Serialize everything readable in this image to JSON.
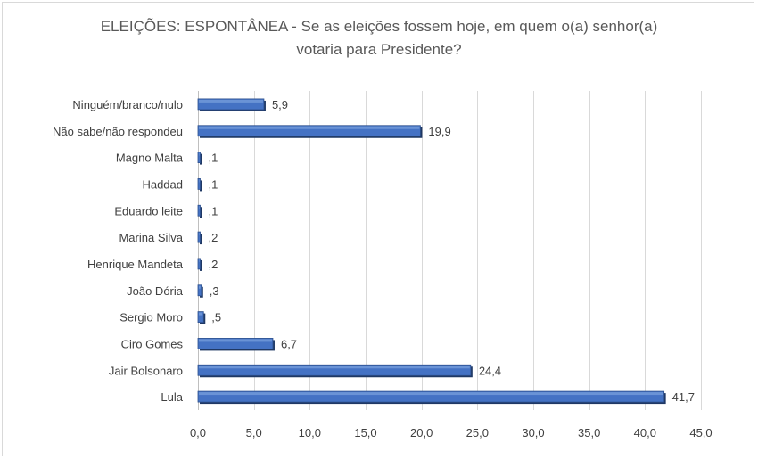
{
  "chart_data": {
    "type": "bar",
    "orientation": "horizontal",
    "title_line1": "ELEIÇÕES: ESPONTÂNEA - Se as eleições fossem hoje, em quem o(a) senhor(a)",
    "title_line2": "votaria para Presidente?",
    "categories": [
      "Ninguém/branco/nulo",
      "Não sabe/não respondeu",
      "Magno Malta",
      "Haddad",
      "Eduardo leite",
      "Marina Silva",
      "Henrique Mandeta",
      "João Dória",
      "Sergio Moro",
      "Ciro Gomes",
      "Jair Bolsonaro",
      "Lula"
    ],
    "values": [
      5.9,
      19.9,
      0.1,
      0.1,
      0.1,
      0.2,
      0.2,
      0.3,
      0.5,
      6.7,
      24.4,
      41.7
    ],
    "value_labels": [
      "5,9",
      "19,9",
      ",1",
      ",1",
      ",1",
      ",2",
      ",2",
      ",3",
      ",5",
      "6,7",
      "24,4",
      "41,7"
    ],
    "xlim": [
      0,
      45
    ],
    "xticks": [
      0,
      5,
      10,
      15,
      20,
      25,
      30,
      35,
      40,
      45
    ],
    "xtick_labels": [
      "0,0",
      "5,0",
      "10,0",
      "15,0",
      "20,0",
      "25,0",
      "30,0",
      "35,0",
      "40,0",
      "45,0"
    ],
    "grid": true,
    "bar_color": "#4472c4",
    "bar_edge_color": "#2f528f"
  }
}
